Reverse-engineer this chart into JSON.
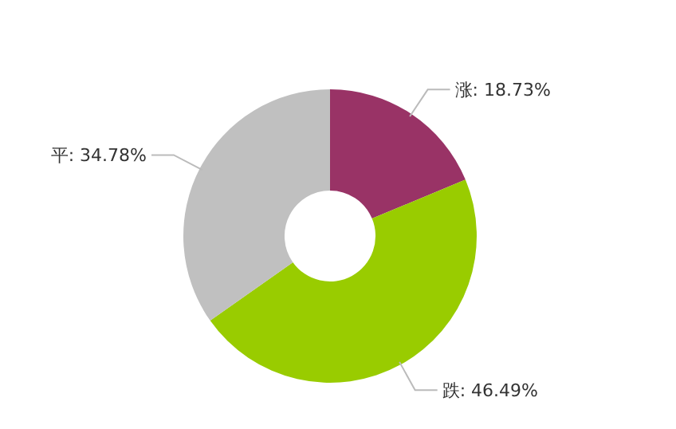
{
  "chart_data": {
    "type": "donut",
    "categories": [
      "涨",
      "跌",
      "平"
    ],
    "values": [
      18.73,
      46.49,
      34.78
    ],
    "colors": [
      "#993366",
      "#99cc00",
      "#c0c0c0"
    ],
    "value_labels": [
      ": 18.73%",
      ": 46.49%",
      ": 34.78%"
    ]
  }
}
